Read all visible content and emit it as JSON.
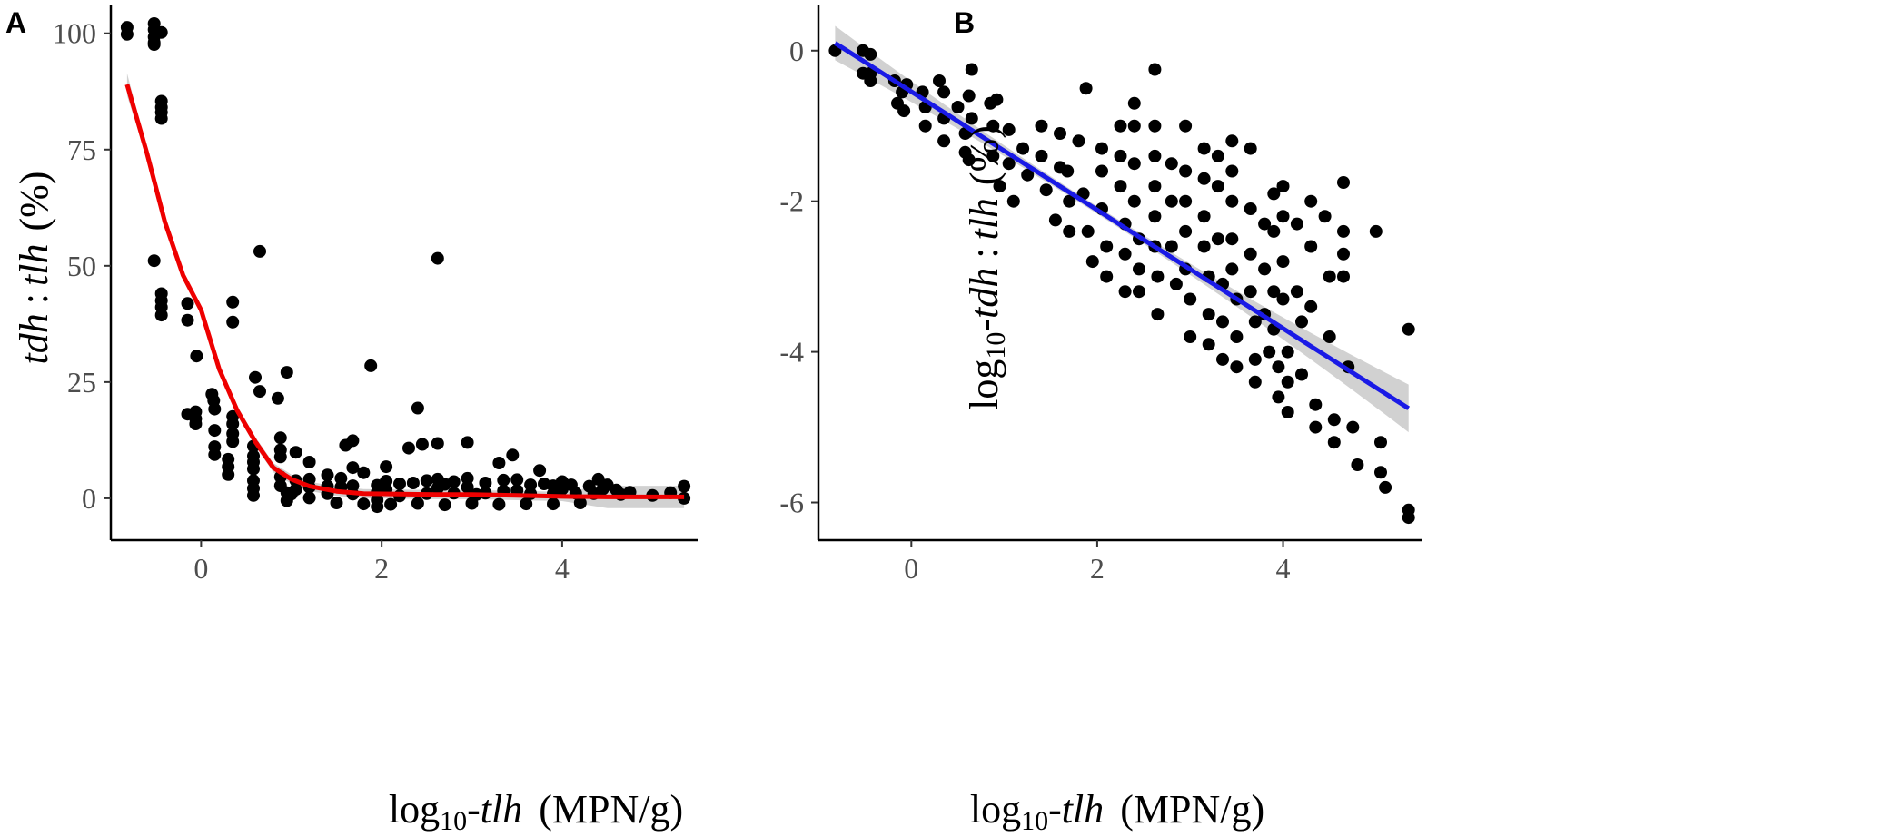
{
  "chart_data": [
    {
      "panel": "A",
      "type": "scatter",
      "xlabel_parts": [
        "log",
        "10",
        "-",
        "tlh",
        "  (MPN/g)"
      ],
      "ylabel_parts": [
        "tdh",
        " : ",
        "tlh",
        " (%)"
      ],
      "xlim": [
        -1.0,
        5.5
      ],
      "ylim": [
        -9,
        106
      ],
      "x_ticks": [
        0,
        2,
        4
      ],
      "y_ticks": [
        0,
        25,
        50,
        75,
        100
      ],
      "grid": false,
      "points": [
        [
          -0.82,
          101.3
        ],
        [
          -0.82,
          99.8
        ],
        [
          -0.52,
          102.1
        ],
        [
          -0.52,
          100.8
        ],
        [
          -0.52,
          99.2
        ],
        [
          -0.52,
          98.0
        ],
        [
          -0.44,
          100.2
        ],
        [
          -0.52,
          97.6
        ],
        [
          -0.44,
          85.4
        ],
        [
          -0.44,
          84.1
        ],
        [
          -0.44,
          83.0
        ],
        [
          -0.44,
          81.7
        ],
        [
          -0.52,
          51.1
        ],
        [
          -0.44,
          44.0
        ],
        [
          -0.44,
          42.5
        ],
        [
          -0.44,
          41.1
        ],
        [
          -0.44,
          39.4
        ],
        [
          -0.15,
          41.9
        ],
        [
          -0.15,
          38.3
        ],
        [
          -0.05,
          30.6
        ],
        [
          -0.15,
          18.1
        ],
        [
          -0.06,
          18.6
        ],
        [
          -0.06,
          17.1
        ],
        [
          -0.06,
          16.0
        ],
        [
          0.12,
          22.4
        ],
        [
          0.14,
          21.0
        ],
        [
          0.15,
          19.2
        ],
        [
          0.15,
          14.6
        ],
        [
          0.15,
          11.1
        ],
        [
          0.15,
          9.4
        ],
        [
          0.35,
          42.2
        ],
        [
          0.35,
          37.9
        ],
        [
          0.35,
          17.6
        ],
        [
          0.35,
          16.0
        ],
        [
          0.35,
          13.9
        ],
        [
          0.35,
          12.2
        ],
        [
          0.3,
          8.4
        ],
        [
          0.3,
          6.8
        ],
        [
          0.3,
          5.1
        ],
        [
          0.6,
          26.0
        ],
        [
          0.65,
          53.1
        ],
        [
          0.65,
          23.0
        ],
        [
          0.58,
          11.2
        ],
        [
          0.58,
          9.1
        ],
        [
          0.58,
          7.8
        ],
        [
          0.58,
          6.3
        ],
        [
          0.58,
          3.8
        ],
        [
          0.58,
          2.1
        ],
        [
          0.58,
          0.6
        ],
        [
          0.85,
          21.5
        ],
        [
          0.95,
          27.1
        ],
        [
          0.88,
          13.0
        ],
        [
          0.88,
          10.4
        ],
        [
          0.88,
          8.9
        ],
        [
          0.88,
          4.6
        ],
        [
          0.88,
          2.7
        ],
        [
          0.95,
          1.2
        ],
        [
          0.95,
          -0.5
        ],
        [
          1.05,
          9.9
        ],
        [
          1.05,
          3.8
        ],
        [
          1.05,
          1.9
        ],
        [
          1.2,
          7.8
        ],
        [
          1.2,
          4.1
        ],
        [
          1.2,
          2.4
        ],
        [
          1.4,
          5.0
        ],
        [
          1.4,
          2.6
        ],
        [
          1.4,
          1.0
        ],
        [
          1.6,
          11.4
        ],
        [
          1.55,
          4.3
        ],
        [
          1.55,
          2.4
        ],
        [
          1.68,
          12.4
        ],
        [
          1.68,
          6.6
        ],
        [
          1.68,
          2.7
        ],
        [
          1.68,
          0.9
        ],
        [
          1.88,
          28.5
        ],
        [
          1.8,
          5.5
        ],
        [
          1.95,
          2.8
        ],
        [
          1.95,
          1.3
        ],
        [
          1.95,
          -0.4
        ],
        [
          1.95,
          -1.8
        ],
        [
          2.05,
          6.8
        ],
        [
          2.05,
          3.7
        ],
        [
          2.05,
          1.9
        ],
        [
          2.2,
          3.1
        ],
        [
          2.2,
          0.5
        ],
        [
          2.3,
          10.8
        ],
        [
          2.35,
          3.3
        ],
        [
          2.4,
          19.4
        ],
        [
          2.45,
          11.6
        ],
        [
          2.5,
          3.8
        ],
        [
          2.5,
          1.0
        ],
        [
          2.62,
          51.6
        ],
        [
          2.62,
          11.8
        ],
        [
          2.62,
          4.1
        ],
        [
          2.62,
          2.2
        ],
        [
          2.7,
          3.0
        ],
        [
          2.8,
          3.6
        ],
        [
          2.8,
          1.1
        ],
        [
          2.95,
          12.0
        ],
        [
          2.95,
          4.3
        ],
        [
          2.95,
          2.4
        ],
        [
          3.05,
          0.8
        ],
        [
          3.15,
          3.3
        ],
        [
          3.15,
          1.1
        ],
        [
          3.3,
          7.6
        ],
        [
          3.35,
          3.9
        ],
        [
          3.35,
          1.6
        ],
        [
          3.45,
          9.3
        ],
        [
          3.5,
          4.0
        ],
        [
          3.5,
          1.7
        ],
        [
          3.65,
          2.9
        ],
        [
          3.65,
          1.0
        ],
        [
          3.75,
          6.0
        ],
        [
          3.8,
          3.1
        ],
        [
          3.9,
          2.7
        ],
        [
          3.9,
          1.0
        ],
        [
          4.0,
          3.6
        ],
        [
          4.0,
          2.0
        ],
        [
          4.1,
          2.9
        ],
        [
          4.15,
          1.1
        ],
        [
          4.3,
          2.6
        ],
        [
          4.35,
          1.0
        ],
        [
          4.4,
          4.1
        ],
        [
          4.45,
          2.0
        ],
        [
          4.5,
          2.9
        ],
        [
          4.6,
          1.8
        ],
        [
          4.65,
          0.8
        ],
        [
          4.75,
          1.3
        ],
        [
          5.0,
          0.6
        ],
        [
          5.2,
          1.2
        ],
        [
          5.35,
          2.6
        ],
        [
          5.35,
          0.0
        ],
        [
          1.0,
          0.9
        ],
        [
          1.2,
          0.1
        ],
        [
          1.5,
          -1.0
        ],
        [
          1.8,
          -1.2
        ],
        [
          2.1,
          -1.3
        ],
        [
          2.4,
          -1.1
        ],
        [
          2.7,
          -1.4
        ],
        [
          3.0,
          -1.1
        ],
        [
          3.3,
          -1.3
        ],
        [
          3.6,
          -1.2
        ],
        [
          3.9,
          -1.2
        ],
        [
          4.2,
          -1.0
        ]
      ],
      "series": [
        {
          "name": "fit",
          "color": "#ee0000",
          "x": [
            -0.82,
            -0.6,
            -0.4,
            -0.2,
            0.0,
            0.2,
            0.4,
            0.6,
            0.8,
            1.0,
            1.2,
            1.5,
            1.8,
            2.2,
            2.6,
            3.0,
            3.5,
            4.0,
            4.5,
            5.0,
            5.35
          ],
          "y": [
            89.0,
            74.2,
            59.4,
            48.0,
            40.5,
            27.8,
            18.9,
            12.2,
            6.6,
            4.1,
            2.6,
            1.5,
            1.0,
            0.9,
            0.8,
            0.8,
            0.6,
            0.4,
            0.3,
            0.3,
            0.3
          ]
        }
      ],
      "ribbon_color": "#bdbdbd"
    },
    {
      "panel": "B",
      "type": "scatter",
      "xlabel_parts": [
        "log",
        "10",
        "-",
        "tlh",
        "  (MPN/g)"
      ],
      "ylabel_parts": [
        "log",
        "10",
        "-",
        "tdh",
        " : ",
        "tlh",
        " (%)"
      ],
      "xlim": [
        -1.0,
        5.5
      ],
      "ylim": [
        -6.5,
        0.6
      ],
      "x_ticks": [
        0,
        2,
        4
      ],
      "y_ticks": [
        0,
        -2,
        -4,
        -6
      ],
      "grid": false,
      "points": [
        [
          -0.82,
          0.0
        ],
        [
          -0.52,
          0.0
        ],
        [
          -0.44,
          -0.05
        ],
        [
          -0.52,
          -0.3
        ],
        [
          -0.44,
          -0.3
        ],
        [
          -0.44,
          -0.4
        ],
        [
          -0.18,
          -0.4
        ],
        [
          -0.1,
          -0.55
        ],
        [
          -0.05,
          -0.45
        ],
        [
          -0.15,
          -0.7
        ],
        [
          -0.08,
          -0.8
        ],
        [
          0.12,
          -0.55
        ],
        [
          0.15,
          -0.75
        ],
        [
          0.15,
          -1.0
        ],
        [
          0.3,
          -0.4
        ],
        [
          0.35,
          -0.55
        ],
        [
          0.35,
          -0.9
        ],
        [
          0.35,
          -1.2
        ],
        [
          0.5,
          -0.75
        ],
        [
          0.58,
          -1.1
        ],
        [
          0.58,
          -1.35
        ],
        [
          0.65,
          -0.25
        ],
        [
          0.62,
          -0.6
        ],
        [
          0.65,
          -0.9
        ],
        [
          0.62,
          -1.45
        ],
        [
          0.85,
          -0.7
        ],
        [
          0.92,
          -0.65
        ],
        [
          0.88,
          -1.0
        ],
        [
          0.88,
          -1.4
        ],
        [
          0.95,
          -1.8
        ],
        [
          1.05,
          -1.05
        ],
        [
          1.05,
          -1.5
        ],
        [
          1.1,
          -2.0
        ],
        [
          1.2,
          -1.3
        ],
        [
          1.25,
          -1.65
        ],
        [
          1.4,
          -1.0
        ],
        [
          1.4,
          -1.4
        ],
        [
          1.45,
          -1.85
        ],
        [
          1.55,
          -2.25
        ],
        [
          1.6,
          -1.1
        ],
        [
          1.6,
          -1.55
        ],
        [
          1.68,
          -1.6
        ],
        [
          1.7,
          -2.0
        ],
        [
          1.7,
          -2.4
        ],
        [
          1.88,
          -0.5
        ],
        [
          1.8,
          -1.2
        ],
        [
          1.85,
          -1.9
        ],
        [
          1.9,
          -2.4
        ],
        [
          1.95,
          -2.8
        ],
        [
          2.05,
          -1.3
        ],
        [
          2.05,
          -1.6
        ],
        [
          2.05,
          -2.1
        ],
        [
          2.1,
          -2.6
        ],
        [
          2.1,
          -3.0
        ],
        [
          2.25,
          -1.0
        ],
        [
          2.25,
          -1.4
        ],
        [
          2.25,
          -1.8
        ],
        [
          2.3,
          -2.3
        ],
        [
          2.3,
          -2.7
        ],
        [
          2.3,
          -3.2
        ],
        [
          2.4,
          -0.7
        ],
        [
          2.4,
          -1.0
        ],
        [
          2.4,
          -1.5
        ],
        [
          2.4,
          -2.0
        ],
        [
          2.45,
          -2.5
        ],
        [
          2.45,
          -2.9
        ],
        [
          2.45,
          -3.2
        ],
        [
          2.62,
          -0.25
        ],
        [
          2.62,
          -1.0
        ],
        [
          2.62,
          -1.4
        ],
        [
          2.62,
          -1.8
        ],
        [
          2.62,
          -2.2
        ],
        [
          2.62,
          -2.6
        ],
        [
          2.65,
          -3.0
        ],
        [
          2.65,
          -3.5
        ],
        [
          2.8,
          -1.5
        ],
        [
          2.8,
          -2.0
        ],
        [
          2.8,
          -2.6
        ],
        [
          2.85,
          -3.1
        ],
        [
          2.95,
          -1.0
        ],
        [
          2.95,
          -1.6
        ],
        [
          2.95,
          -2.0
        ],
        [
          2.95,
          -2.4
        ],
        [
          2.95,
          -2.9
        ],
        [
          3.0,
          -3.3
        ],
        [
          3.0,
          -3.8
        ],
        [
          3.15,
          -1.3
        ],
        [
          3.15,
          -1.7
        ],
        [
          3.15,
          -2.2
        ],
        [
          3.15,
          -2.6
        ],
        [
          3.2,
          -3.0
        ],
        [
          3.2,
          -3.5
        ],
        [
          3.2,
          -3.9
        ],
        [
          3.3,
          -1.4
        ],
        [
          3.3,
          -1.8
        ],
        [
          3.3,
          -2.5
        ],
        [
          3.35,
          -3.1
        ],
        [
          3.35,
          -3.6
        ],
        [
          3.35,
          -4.1
        ],
        [
          3.45,
          -1.2
        ],
        [
          3.45,
          -1.6
        ],
        [
          3.45,
          -2.0
        ],
        [
          3.45,
          -2.5
        ],
        [
          3.45,
          -2.9
        ],
        [
          3.5,
          -3.3
        ],
        [
          3.5,
          -3.8
        ],
        [
          3.5,
          -4.2
        ],
        [
          3.65,
          -1.3
        ],
        [
          3.65,
          -2.1
        ],
        [
          3.65,
          -2.7
        ],
        [
          3.65,
          -3.2
        ],
        [
          3.7,
          -3.6
        ],
        [
          3.7,
          -4.1
        ],
        [
          3.7,
          -4.4
        ],
        [
          3.8,
          -2.3
        ],
        [
          3.8,
          -2.9
        ],
        [
          3.8,
          -3.5
        ],
        [
          3.85,
          -4.0
        ],
        [
          3.9,
          -1.9
        ],
        [
          3.9,
          -2.4
        ],
        [
          3.9,
          -3.2
        ],
        [
          3.9,
          -3.7
        ],
        [
          3.95,
          -4.2
        ],
        [
          3.95,
          -4.6
        ],
        [
          4.0,
          -1.8
        ],
        [
          4.0,
          -2.2
        ],
        [
          4.0,
          -2.8
        ],
        [
          4.0,
          -3.3
        ],
        [
          4.05,
          -4.0
        ],
        [
          4.05,
          -4.4
        ],
        [
          4.05,
          -4.8
        ],
        [
          4.15,
          -2.3
        ],
        [
          4.15,
          -3.2
        ],
        [
          4.2,
          -3.6
        ],
        [
          4.2,
          -4.3
        ],
        [
          4.3,
          -2.0
        ],
        [
          4.3,
          -2.6
        ],
        [
          4.3,
          -3.4
        ],
        [
          4.35,
          -4.7
        ],
        [
          4.35,
          -5.0
        ],
        [
          4.45,
          -2.2
        ],
        [
          4.5,
          -3.0
        ],
        [
          4.5,
          -3.8
        ],
        [
          4.55,
          -4.9
        ],
        [
          4.55,
          -5.2
        ],
        [
          4.65,
          -1.75
        ],
        [
          4.7,
          -4.2
        ],
        [
          4.75,
          -5.0
        ],
        [
          4.8,
          -5.5
        ],
        [
          4.65,
          -2.4
        ],
        [
          4.65,
          -2.7
        ],
        [
          4.65,
          -3.0
        ],
        [
          5.0,
          -2.4
        ],
        [
          5.05,
          -5.2
        ],
        [
          5.05,
          -5.6
        ],
        [
          5.1,
          -5.8
        ],
        [
          5.35,
          -3.7
        ],
        [
          5.35,
          -6.1
        ],
        [
          5.35,
          -6.2
        ]
      ],
      "series": [
        {
          "name": "fit",
          "color": "#1a1ae6",
          "x": [
            -0.82,
            5.35
          ],
          "y": [
            0.1,
            -4.75
          ]
        }
      ],
      "ribbon_color": "#bdbdbd"
    }
  ],
  "panels": {
    "a": {
      "label": "A",
      "xlabel": {
        "pre": "log",
        "sub": "10",
        "dash": "-",
        "var": "tlh",
        "unit": "(MPN/g)"
      },
      "ylabel": {
        "v1": "tdh",
        "sep": ":",
        "v2": "tlh",
        "unit": "(%)"
      }
    },
    "b": {
      "label": "B",
      "xlabel": {
        "pre": "log",
        "sub": "10",
        "dash": "-",
        "var": "tlh",
        "unit": "(MPN/g)"
      },
      "ylabel": {
        "pre": "log",
        "sub": "10",
        "dash": "-",
        "v1": "tdh",
        "sep": ":",
        "v2": "tlh",
        "unit": "(%)"
      }
    }
  }
}
